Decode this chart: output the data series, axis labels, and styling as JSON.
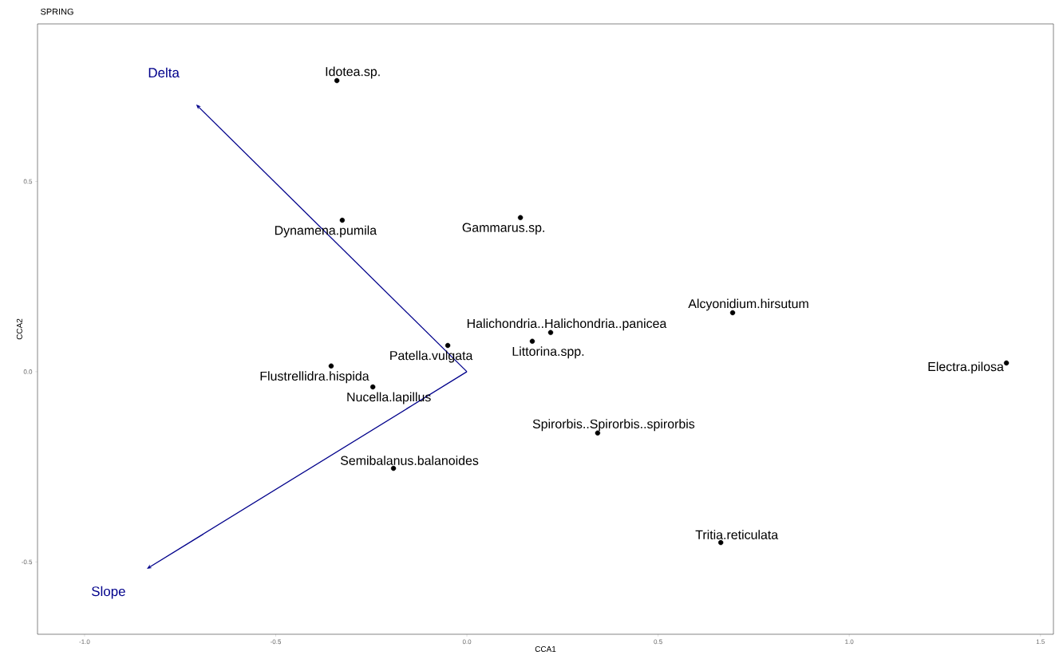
{
  "chart_data": {
    "type": "scatter",
    "title": "SPRING",
    "xlabel": "CCA1",
    "ylabel": "CCA2",
    "xlim": [
      -1.123,
      1.534
    ],
    "ylim": [
      -0.69,
      0.914
    ],
    "xticks": [
      {
        "value": -1.0,
        "label": "-1.0"
      },
      {
        "value": -0.5,
        "label": "-0.5"
      },
      {
        "value": 0.0,
        "label": "0.0"
      },
      {
        "value": 0.5,
        "label": "0.5"
      },
      {
        "value": 1.0,
        "label": "1.0"
      },
      {
        "value": 1.5,
        "label": "1.5"
      }
    ],
    "yticks": [
      {
        "value": -0.5,
        "label": "-0.5"
      },
      {
        "value": 0.0,
        "label": "0.0"
      },
      {
        "value": 0.5,
        "label": "0.5"
      }
    ],
    "series": [
      {
        "type": "scatter",
        "color": "#000000",
        "x": [
          -0.34,
          -0.326,
          0.14,
          0.695,
          0.219,
          0.171,
          -0.05,
          1.411,
          -0.355,
          -0.246,
          0.342,
          -0.192,
          0.664
        ],
        "values": [
          0.765,
          0.398,
          0.405,
          0.155,
          0.103,
          0.08,
          0.069,
          0.023,
          0.015,
          -0.04,
          -0.161,
          -0.254,
          -0.449
        ]
      },
      {
        "type": "line",
        "name": "Delta",
        "color": "#00008b",
        "x": [
          0,
          -0.708
        ],
        "values": [
          0,
          0.702
        ]
      },
      {
        "type": "line",
        "name": "Slope",
        "color": "#00008b",
        "x": [
          0,
          -0.837
        ],
        "values": [
          0,
          -0.518
        ]
      }
    ],
    "annotations": [
      {
        "text": "Idotea.sp.",
        "x": -0.34,
        "y": 0.765
      },
      {
        "text": "Dynamena.pumila",
        "x": -0.326,
        "y": 0.398
      },
      {
        "text": "Gammarus.sp.",
        "x": 0.14,
        "y": 0.405
      },
      {
        "text": "Alcyonidium.hirsutum",
        "x": 0.695,
        "y": 0.155
      },
      {
        "text": "Halichondria..Halichondria..panicea",
        "x": 0.219,
        "y": 0.103
      },
      {
        "text": "Littorina.spp.",
        "x": 0.171,
        "y": 0.08
      },
      {
        "text": "Patella.vulgata",
        "x": -0.05,
        "y": 0.069
      },
      {
        "text": "Electra.pilosa",
        "x": 1.411,
        "y": 0.023
      },
      {
        "text": "Flustrellidra.hispida",
        "x": -0.355,
        "y": 0.015
      },
      {
        "text": "Nucella.lapillus",
        "x": -0.246,
        "y": -0.04
      },
      {
        "text": "Spirorbis..Spirorbis..spirorbis",
        "x": 0.342,
        "y": -0.161
      },
      {
        "text": "Semibalanus.balanoides",
        "x": -0.192,
        "y": -0.254
      },
      {
        "text": "Tritia.reticulata",
        "x": 0.664,
        "y": -0.449
      }
    ]
  }
}
